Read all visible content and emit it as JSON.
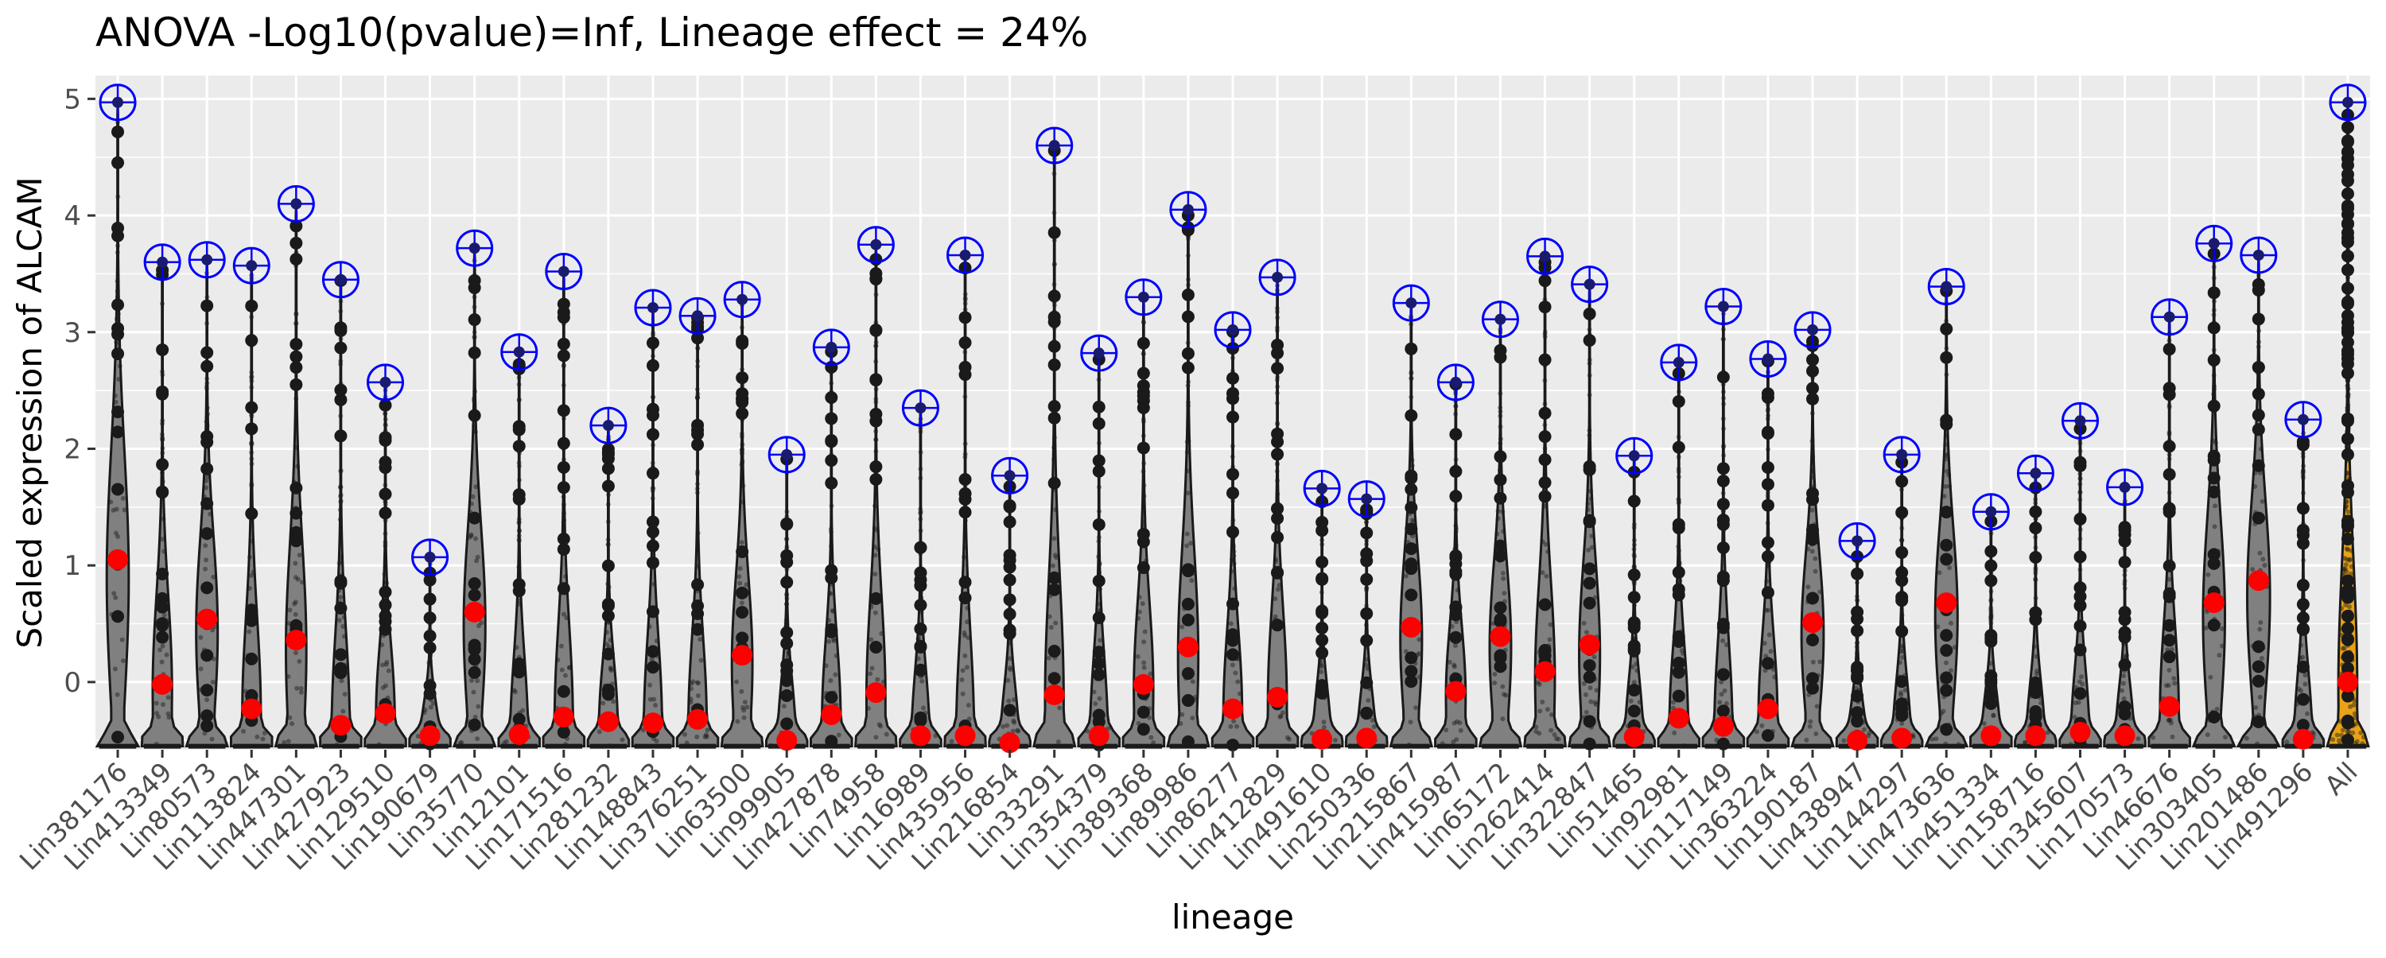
{
  "chart_data": {
    "type": "violin",
    "title": "ANOVA -Log10(pvalue)=Inf, Lineage effect = 24%",
    "xlabel": "lineage",
    "ylabel": "Scaled expression of ALCAM",
    "ylim": [
      -0.58,
      5.2
    ],
    "yticks": [
      0,
      1,
      2,
      3,
      4,
      5
    ],
    "grid": true,
    "markers": {
      "mean": "red filled circle",
      "max": "blue crosshair circle"
    },
    "colors": {
      "panel_bg": "#ebebeb",
      "grid": "#ffffff",
      "violin_fill": "#808080",
      "violin_fill_all": "#e8a317",
      "mean_marker": "#ff0000",
      "max_marker": "#0000ff",
      "points": "#1a1a1a"
    },
    "categories": [
      "Lin381176",
      "Lin413349",
      "Lin80573",
      "Lin113824",
      "Lin447301",
      "Lin427923",
      "Lin129510",
      "Lin190679",
      "Lin35770",
      "Lin12101",
      "Lin171516",
      "Lin281232",
      "Lin148843",
      "Lin376251",
      "Lin63500",
      "Lin99905",
      "Lin427878",
      "Lin74958",
      "Lin16989",
      "Lin435956",
      "Lin216854",
      "Lin33291",
      "Lin354379",
      "Lin389368",
      "Lin89986",
      "Lin86277",
      "Lin412829",
      "Lin491610",
      "Lin250336",
      "Lin215867",
      "Lin415987",
      "Lin65172",
      "Lin262414",
      "Lin322847",
      "Lin51465",
      "Lin92981",
      "Lin117149",
      "Lin363224",
      "Lin190187",
      "Lin438947",
      "Lin144297",
      "Lin473636",
      "Lin451334",
      "Lin158716",
      "Lin345607",
      "Lin170573",
      "Lin46676",
      "Lin303405",
      "Lin201486",
      "Lin491296",
      "All"
    ],
    "max_values": [
      4.97,
      3.6,
      3.62,
      3.57,
      4.1,
      3.45,
      2.57,
      1.07,
      3.72,
      2.83,
      3.52,
      2.2,
      3.21,
      3.14,
      3.28,
      1.95,
      2.87,
      3.75,
      2.35,
      3.66,
      1.77,
      4.6,
      2.82,
      3.3,
      4.05,
      3.02,
      3.47,
      1.66,
      1.57,
      3.25,
      2.57,
      3.11,
      3.65,
      3.41,
      1.94,
      2.74,
      3.22,
      2.77,
      3.02,
      1.21,
      1.95,
      3.39,
      1.46,
      1.79,
      2.24,
      1.67,
      3.13,
      3.76,
      3.66,
      2.25,
      4.97
    ],
    "mean_values": [
      1.05,
      -0.02,
      0.54,
      -0.23,
      0.36,
      -0.37,
      -0.27,
      -0.46,
      0.6,
      -0.45,
      -0.3,
      -0.34,
      -0.35,
      -0.32,
      0.23,
      -0.5,
      -0.28,
      -0.09,
      -0.46,
      -0.46,
      -0.52,
      -0.11,
      -0.46,
      -0.02,
      0.3,
      -0.23,
      -0.13,
      -0.49,
      -0.48,
      0.47,
      -0.08,
      0.39,
      0.09,
      0.32,
      -0.47,
      -0.31,
      -0.38,
      -0.23,
      0.51,
      -0.5,
      -0.48,
      0.68,
      -0.46,
      -0.46,
      -0.43,
      -0.46,
      -0.21,
      0.68,
      0.87,
      -0.49,
      0.0
    ]
  }
}
